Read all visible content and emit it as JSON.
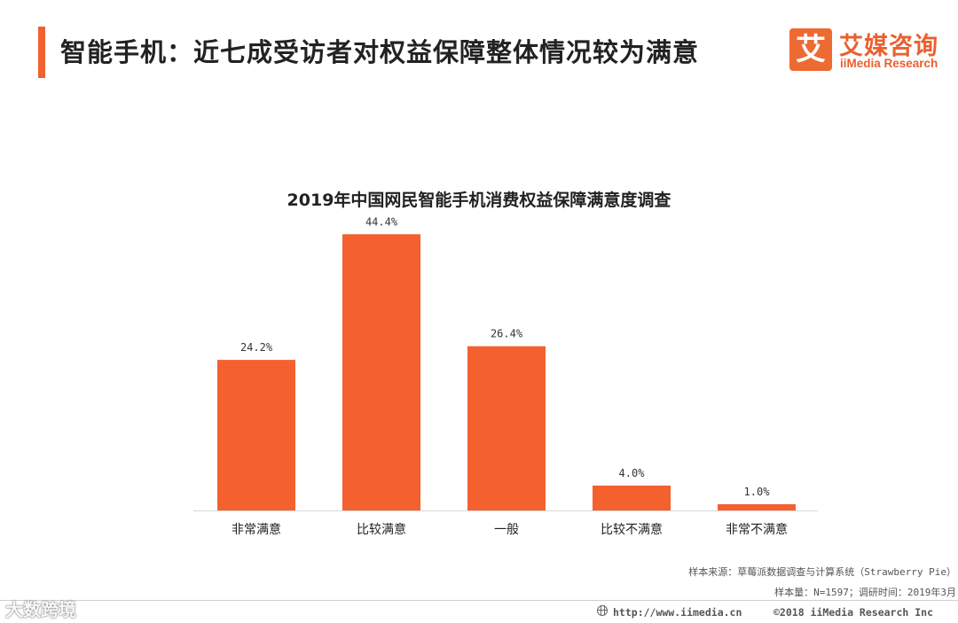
{
  "slide": {
    "title": "智能手机：近七成受访者对权益保障整体情况较为满意"
  },
  "brand": {
    "logo_glyph": "艾",
    "name": "艾媒咨询",
    "subtitle": "iiMedia Research",
    "color": "#e9602f"
  },
  "chart_data": {
    "type": "bar",
    "title": "2019年中国网民智能手机消费权益保障满意度调查",
    "categories": [
      "非常满意",
      "比较满意",
      "一般",
      "比较不满意",
      "非常不满意"
    ],
    "values": [
      24.2,
      44.4,
      26.4,
      4.0,
      1.0
    ],
    "value_labels": [
      "24.2%",
      "44.4%",
      "26.4%",
      "4.0%",
      "1.0%"
    ],
    "unit": "%",
    "xlabel": "",
    "ylabel": "",
    "ylim": [
      0,
      50
    ],
    "grid": false,
    "legend": "none",
    "bar_color": "#f4602e"
  },
  "source": {
    "line1": "样本来源：草莓派数据调查与计算系统（Strawberry Pie）",
    "line2": "样本量：N=1597；调研时间：2019年3月"
  },
  "footer": {
    "url": "http://www.iimedia.cn",
    "copyright": "©2018  iiMedia Research  Inc"
  },
  "watermark": {
    "text": "大数跨境"
  }
}
